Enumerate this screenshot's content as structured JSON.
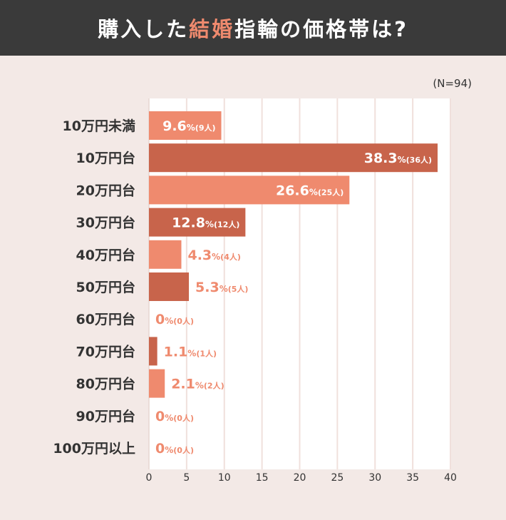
{
  "title": {
    "part1": "購入した",
    "highlight": "結婚",
    "part2": "指輪の価格帯は?"
  },
  "colors": {
    "header_bg": "#3a3a3a",
    "highlight": "#ef8a6e",
    "bar_light": "#ef8a6e",
    "bar_dark": "#c8644b",
    "background": "#f3e9e6",
    "plot_bg": "#ffffff",
    "grid": "#f0e0dc",
    "label_text": "#333333"
  },
  "chart_data": {
    "type": "bar",
    "orientation": "horizontal",
    "sample_note": "(N=94)",
    "categories": [
      "10万円未満",
      "10万円台",
      "20万円台",
      "30万円台",
      "40万円台",
      "50万円台",
      "60万円台",
      "70万円台",
      "80万円台",
      "90万円台",
      "100万円以上"
    ],
    "values": [
      9.6,
      38.3,
      26.6,
      12.8,
      4.3,
      5.3,
      0,
      1.1,
      2.1,
      0,
      0
    ],
    "value_labels": [
      "9.6",
      "38.3",
      "26.6",
      "12.8",
      "4.3",
      "5.3",
      "0",
      "1.1",
      "2.1",
      "0",
      "0"
    ],
    "counts": [
      "(9人)",
      "(36人)",
      "(25人)",
      "(12人)",
      "(4人)",
      "(5人)",
      "(0人)",
      "(1人)",
      "(2人)",
      "(0人)",
      "(0人)"
    ],
    "percent_sign": "%",
    "xlim": [
      0,
      40
    ],
    "xticks": [
      0,
      5,
      10,
      15,
      20,
      25,
      30,
      35,
      40
    ],
    "grid": true,
    "xlabel": "",
    "ylabel": ""
  }
}
